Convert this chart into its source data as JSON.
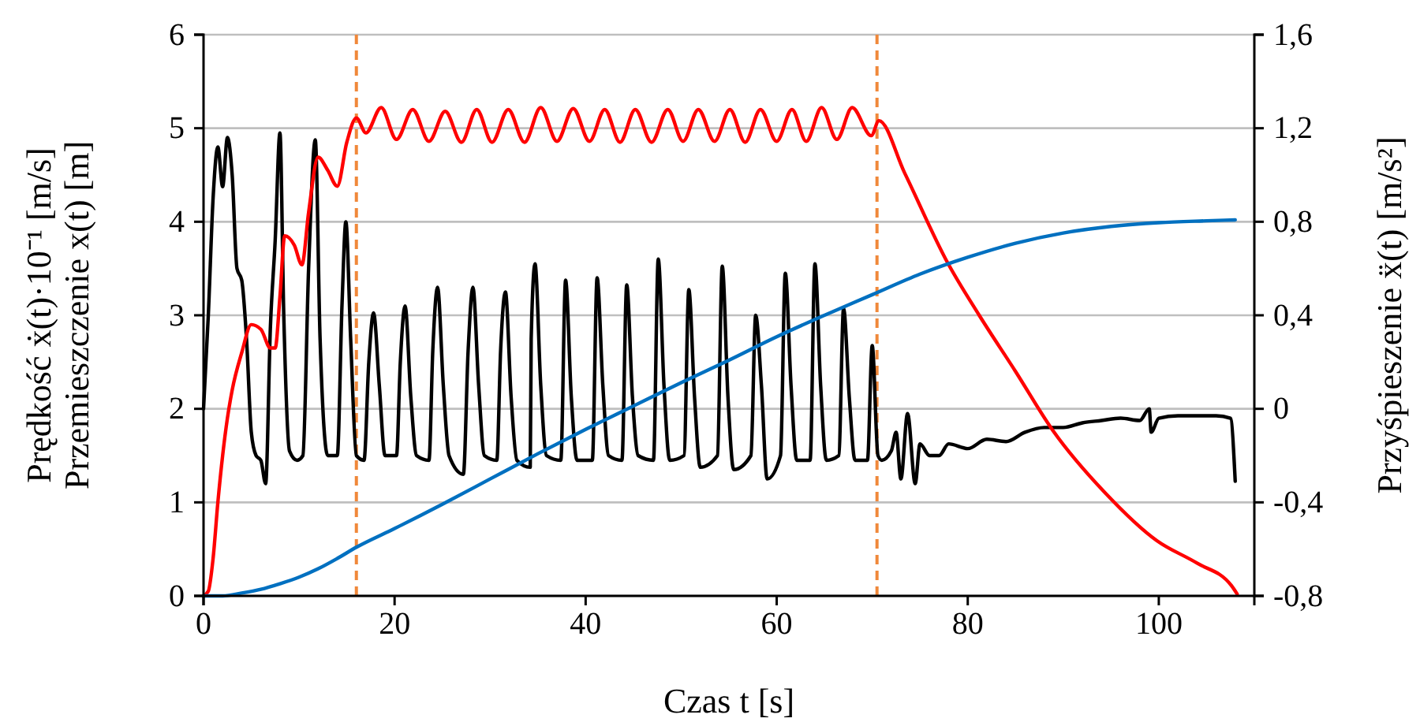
{
  "chart_data": {
    "type": "line",
    "xlabel": "Czas t [s]",
    "ylabel": "Prędkość ẋ(t)·10⁻¹ [m/s]\nPrzemieszczenie x(t) [m]",
    "y2label": "Przyśpieszenie ẍ(t) [m/s²]",
    "xlim": [
      0,
      110
    ],
    "xticks": [
      0,
      20,
      40,
      60,
      80,
      100
    ],
    "ylim": [
      0,
      6
    ],
    "yticks": [
      0,
      1,
      2,
      3,
      4,
      5,
      6
    ],
    "y2lim": [
      -0.8,
      1.6
    ],
    "y2ticks": [
      {
        "value": -0.8,
        "label": "-0,8"
      },
      {
        "value": -0.4,
        "label": "-0,4"
      },
      0,
      {
        "value": 0.4,
        "label": "0,4"
      },
      {
        "value": 0.8,
        "label": "0,8"
      },
      {
        "value": 1.2,
        "label": "1,2"
      },
      {
        "value": 1.6,
        "label": "1,6"
      }
    ],
    "grid": "y",
    "line_style": "solid",
    "marker": "none",
    "ref_lines": [
      {
        "axis": "x",
        "value": 16,
        "color": "#f0883a",
        "line_style": "dashed"
      },
      {
        "axis": "x",
        "value": 70.5,
        "color": "#f0883a",
        "line_style": "dashed"
      }
    ],
    "series": [
      {
        "color": "#000000",
        "axis": "y2",
        "x": [
          0,
          0.5,
          1,
          1.5,
          2,
          2.5,
          3,
          3.5,
          4,
          4.5,
          5,
          5.5,
          6,
          6.5,
          7,
          7.5,
          8,
          8.4,
          9,
          9.8,
          10.4,
          11,
          11.7,
          12.2,
          13,
          14,
          14.5,
          14.9,
          15.4,
          16,
          16.8,
          17.3,
          17.8,
          18.4,
          19,
          20.2,
          20.6,
          21.1,
          21.7,
          22.3,
          23.6,
          24,
          24.5,
          25.1,
          25.7,
          27.2,
          27.7,
          28.2,
          28.8,
          29.4,
          30.7,
          31.1,
          31.6,
          32.2,
          32.8,
          34.2,
          34.3,
          34.7,
          35.3,
          35.9,
          37.4,
          37.9,
          38.5,
          39.1,
          40.7,
          41.2,
          41.8,
          42.4,
          43.8,
          44.3,
          44.9,
          45.5,
          47.1,
          47.6,
          48.2,
          48.8,
          50.3,
          50.8,
          51.4,
          52,
          53.8,
          54.3,
          54.9,
          55.5,
          57.3,
          57.8,
          58.4,
          59,
          60.4,
          60.9,
          61.5,
          62.1,
          63.5,
          64,
          64.6,
          65.2,
          66.5,
          67,
          67.6,
          68.2,
          69.5,
          70,
          70.6,
          71,
          72,
          72.5,
          73,
          73.7,
          74.5,
          75,
          76,
          77,
          78,
          80,
          82,
          84,
          86,
          88,
          90,
          92,
          94,
          96,
          98,
          99,
          99.2,
          100,
          102,
          104,
          106,
          107.5,
          108
        ],
        "values": [
          0,
          0.4,
          0.9,
          1.12,
          0.95,
          1.16,
          1.0,
          0.6,
          0.55,
          0.3,
          -0.1,
          -0.2,
          -0.22,
          -0.32,
          0.35,
          0.72,
          1.18,
          0.4,
          -0.18,
          -0.22,
          -0.2,
          0.6,
          1.15,
          0.3,
          -0.2,
          -0.2,
          0.45,
          0.8,
          0.3,
          -0.2,
          -0.22,
          0.2,
          0.41,
          0.1,
          -0.2,
          -0.2,
          0.2,
          0.44,
          0.05,
          -0.2,
          -0.22,
          0.25,
          0.52,
          0.1,
          -0.2,
          -0.28,
          0.25,
          0.52,
          0.1,
          -0.2,
          -0.22,
          0.25,
          0.5,
          0.05,
          -0.22,
          -0.25,
          0.3,
          0.62,
          0.1,
          -0.2,
          -0.22,
          0.55,
          0.05,
          -0.22,
          -0.22,
          0.56,
          0.1,
          -0.2,
          -0.22,
          0.53,
          0.05,
          -0.2,
          -0.22,
          0.64,
          0.1,
          -0.22,
          -0.2,
          0.51,
          0.05,
          -0.25,
          -0.2,
          0.61,
          0.05,
          -0.26,
          -0.2,
          0.4,
          0.1,
          -0.3,
          -0.2,
          0.58,
          0.1,
          -0.22,
          -0.22,
          0.62,
          0.1,
          -0.22,
          -0.2,
          0.43,
          0.05,
          -0.22,
          -0.22,
          0.27,
          -0.2,
          -0.22,
          -0.18,
          -0.1,
          -0.3,
          -0.02,
          -0.32,
          -0.15,
          -0.2,
          -0.2,
          -0.15,
          -0.17,
          -0.13,
          -0.14,
          -0.1,
          -0.08,
          -0.08,
          -0.06,
          -0.05,
          -0.04,
          -0.05,
          0.0,
          -0.1,
          -0.04,
          -0.03,
          -0.03,
          -0.03,
          -0.04,
          -0.31
        ]
      },
      {
        "color": "#ff0000",
        "x": [
          0,
          0.5,
          1,
          1.5,
          2,
          2.5,
          3,
          4,
          5,
          6,
          7,
          7.5,
          8,
          8.5,
          9.5,
          10.3,
          11,
          12,
          13,
          14,
          15,
          16,
          17,
          18.6,
          20.2,
          21.9,
          23.6,
          25.3,
          27,
          28.6,
          30.2,
          31.9,
          33.6,
          35.3,
          37,
          38.7,
          40.4,
          42,
          43.6,
          45.2,
          46.9,
          48.6,
          50.2,
          51.8,
          53.5,
          55.1,
          56.7,
          58.3,
          60,
          61.6,
          63.1,
          64.7,
          66.3,
          67.9,
          69.9,
          70.7,
          73.4,
          77.9,
          81.2,
          85,
          88.9,
          94.4,
          99.8,
          104,
          107.6,
          108.2
        ],
        "values": [
          0,
          0.05,
          0.4,
          1.0,
          1.5,
          1.9,
          2.2,
          2.6,
          2.9,
          2.85,
          2.65,
          2.65,
          3.2,
          3.85,
          3.75,
          3.54,
          4.1,
          4.69,
          4.55,
          4.38,
          4.85,
          5.11,
          4.95,
          5.22,
          4.88,
          5.2,
          4.86,
          5.18,
          4.85,
          5.2,
          4.85,
          5.2,
          4.85,
          5.22,
          4.86,
          5.21,
          4.86,
          5.2,
          4.85,
          5.2,
          4.85,
          5.2,
          4.86,
          5.2,
          4.86,
          5.2,
          4.85,
          5.2,
          4.86,
          5.2,
          4.86,
          5.22,
          4.88,
          5.22,
          4.92,
          5.08,
          4.52,
          3.56,
          3.0,
          2.4,
          1.77,
          1.1,
          0.59,
          0.35,
          0.11,
          0.02
        ]
      },
      {
        "color": "#0070c0",
        "x": [
          0,
          2,
          4,
          6,
          8,
          10,
          12,
          14,
          16,
          20,
          25,
          30,
          35,
          40,
          45,
          50,
          55,
          60,
          65,
          70,
          75,
          80,
          85,
          90,
          95,
          100,
          105,
          108
        ],
        "values": [
          0,
          0,
          0.03,
          0.07,
          0.13,
          0.2,
          0.29,
          0.4,
          0.52,
          0.72,
          0.98,
          1.25,
          1.52,
          1.78,
          2.03,
          2.28,
          2.52,
          2.77,
          3.0,
          3.22,
          3.44,
          3.62,
          3.77,
          3.88,
          3.95,
          3.99,
          4.01,
          4.02
        ]
      }
    ]
  }
}
